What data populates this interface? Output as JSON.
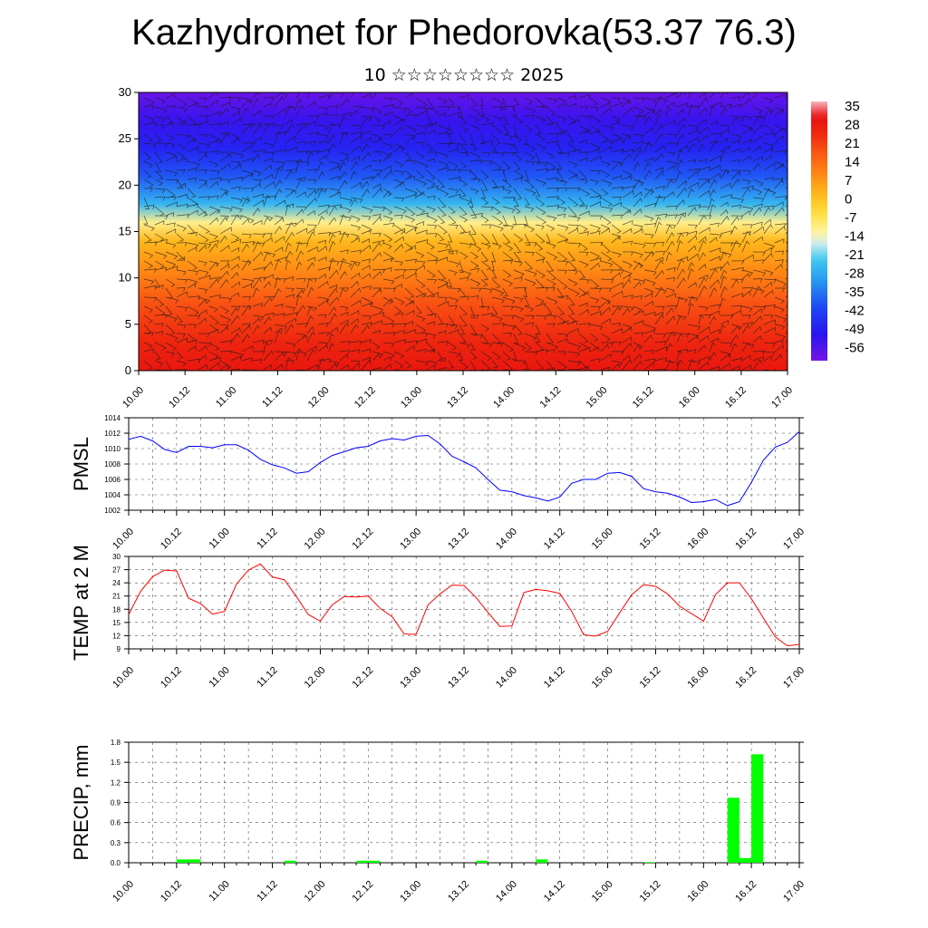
{
  "header": {
    "title": "Kazhydromet for Phedorovka(53.37 76.3)",
    "subtitle": "10 ☆☆☆☆☆☆☆☆ 2025"
  },
  "time_labels": [
    "10.00",
    "10.12",
    "11.00",
    "11.12",
    "12.00",
    "12.12",
    "13.00",
    "13.12",
    "14.00",
    "14.12",
    "15.00",
    "15.12",
    "16.00",
    "16.12",
    "17.00"
  ],
  "colors": {
    "pmsl_line": "#0000ff",
    "temp_line": "#ff0000",
    "precip_bar": "#00ff00"
  },
  "chart_data": [
    {
      "type": "heatmap",
      "name": "cross-section",
      "x_ticks": [
        "10.00",
        "10.12",
        "11.00",
        "11.12",
        "12.00",
        "12.12",
        "13.00",
        "13.12",
        "14.00",
        "14.12",
        "15.00",
        "15.12",
        "16.00",
        "16.12",
        "17.00"
      ],
      "y_ticks": [
        "0",
        "5",
        "10",
        "15",
        "20",
        "25",
        "30"
      ],
      "ylim": [
        0,
        30
      ],
      "colorbar_labels": [
        "35",
        "28",
        "21",
        "14",
        "7",
        "0",
        "-7",
        "-14",
        "-21",
        "-28",
        "-35",
        "-42",
        "-49",
        "-56"
      ],
      "colorbar_range": [
        -60,
        38
      ],
      "overlay": "wind barbs",
      "level_profile": [
        {
          "level": 0,
          "value": 30
        },
        {
          "level": 3,
          "value": 27
        },
        {
          "level": 7,
          "value": 20
        },
        {
          "level": 11,
          "value": 10
        },
        {
          "level": 14,
          "value": 3
        },
        {
          "level": 16,
          "value": -10
        },
        {
          "level": 18,
          "value": -25
        },
        {
          "level": 21,
          "value": -38
        },
        {
          "level": 24,
          "value": -47
        },
        {
          "level": 27,
          "value": -52
        },
        {
          "level": 30,
          "value": -58
        }
      ]
    },
    {
      "type": "line",
      "name": "pmsl",
      "ylabel": "PMSL",
      "ylim": [
        1002,
        1014
      ],
      "y_ticks": [
        "1002",
        "1004",
        "1006",
        "1008",
        "1010",
        "1012",
        "1014"
      ],
      "x_ticks": [
        "10.00",
        "10.12",
        "11.00",
        "11.12",
        "12.00",
        "12.12",
        "13.00",
        "13.12",
        "14.00",
        "14.12",
        "15.00",
        "15.12",
        "16.00",
        "16.12",
        "17.00"
      ],
      "x": [
        0,
        3,
        6,
        9,
        12,
        15,
        18,
        21,
        24,
        27,
        30,
        33,
        36,
        39,
        42,
        45,
        48,
        51,
        54,
        57,
        60,
        63,
        66,
        69,
        72,
        75,
        78,
        81,
        84,
        87,
        90,
        93,
        96,
        99,
        102,
        105,
        108,
        111,
        114,
        117,
        120,
        123,
        126,
        129,
        132,
        135,
        138,
        141,
        144,
        147,
        150,
        153,
        156,
        159,
        162,
        165,
        168
      ],
      "values": [
        1011.2,
        1011.6,
        1011.0,
        1009.9,
        1009.5,
        1010.3,
        1010.3,
        1010.1,
        1010.5,
        1010.5,
        1009.8,
        1008.6,
        1007.9,
        1007.5,
        1006.8,
        1007.0,
        1008.2,
        1009.1,
        1009.6,
        1010.1,
        1010.3,
        1011.0,
        1011.3,
        1011.1,
        1011.6,
        1011.7,
        1010.6,
        1009.0,
        1008.3,
        1007.5,
        1006.0,
        1004.6,
        1004.4,
        1003.9,
        1003.6,
        1003.2,
        1003.7,
        1005.5,
        1006.0,
        1006.0,
        1006.8,
        1006.9,
        1006.4,
        1004.8,
        1004.4,
        1004.2,
        1003.7,
        1003.0,
        1003.1,
        1003.4,
        1002.6,
        1003.1,
        1005.6,
        1008.5,
        1010.2,
        1010.8,
        1012.2
      ]
    },
    {
      "type": "line",
      "name": "temp",
      "ylabel": "TEMP at 2 M",
      "ylim": [
        9,
        30
      ],
      "y_ticks": [
        "9",
        "12",
        "15",
        "18",
        "21",
        "24",
        "27",
        "30"
      ],
      "x_ticks": [
        "10.00",
        "10.12",
        "11.00",
        "11.12",
        "12.00",
        "12.12",
        "13.00",
        "13.12",
        "14.00",
        "14.12",
        "15.00",
        "15.12",
        "16.00",
        "16.12",
        "17.00"
      ],
      "x": [
        0,
        3,
        6,
        9,
        12,
        15,
        18,
        21,
        24,
        27,
        30,
        33,
        36,
        39,
        42,
        45,
        48,
        51,
        54,
        57,
        60,
        63,
        66,
        69,
        72,
        75,
        78,
        81,
        84,
        87,
        90,
        93,
        96,
        99,
        102,
        105,
        108,
        111,
        114,
        117,
        120,
        123,
        126,
        129,
        132,
        135,
        138,
        141,
        144,
        147,
        150,
        153,
        156,
        159,
        162,
        165,
        168
      ],
      "values": [
        16.8,
        22.1,
        25.4,
        26.9,
        26.7,
        20.5,
        19.3,
        16.9,
        17.5,
        23.7,
        26.9,
        28.3,
        25.3,
        24.7,
        20.9,
        16.8,
        15.3,
        19.0,
        20.9,
        20.8,
        21.0,
        18.2,
        16.3,
        12.4,
        12.3,
        19.0,
        21.5,
        23.5,
        23.4,
        20.7,
        17.3,
        14.1,
        14.2,
        21.8,
        22.5,
        22.2,
        21.6,
        17.5,
        12.2,
        11.9,
        13.0,
        17.2,
        21.3,
        23.6,
        23.2,
        21.5,
        18.7,
        17.0,
        15.3,
        21.3,
        24.0,
        24.0,
        20.4,
        16.0,
        11.7,
        9.7,
        10.0
      ]
    },
    {
      "type": "bar",
      "name": "precip",
      "ylabel": "PRECIP, mm",
      "ylim": [
        0,
        1.8
      ],
      "y_ticks": [
        "0.0",
        "0.3",
        "0.6",
        "0.9",
        "1.2",
        "1.5",
        "1.8"
      ],
      "x_ticks": [
        "10.00",
        "10.12",
        "11.00",
        "11.12",
        "12.00",
        "12.12",
        "13.00",
        "13.12",
        "14.00",
        "14.12",
        "15.00",
        "15.12",
        "16.00",
        "16.12",
        "17.00"
      ],
      "x": [
        12,
        15,
        39,
        57,
        60,
        87,
        102,
        129,
        150,
        153,
        156
      ],
      "values": [
        0.05,
        0.05,
        0.03,
        0.03,
        0.03,
        0.03,
        0.05,
        0.01,
        0.97,
        0.07,
        1.62
      ]
    }
  ]
}
